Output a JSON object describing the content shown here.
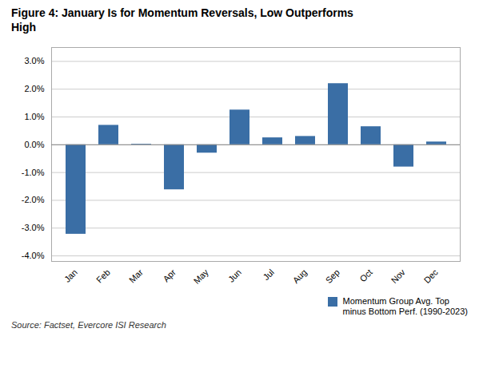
{
  "chart_data": {
    "type": "bar",
    "title": "Figure 4: January Is for Momentum Reversals, Low Outperforms\nHigh",
    "categories": [
      "Jan",
      "Feb",
      "Mar",
      "Apr",
      "May",
      "Jun",
      "Jul",
      "Aug",
      "Sep",
      "Oct",
      "Nov",
      "Dec"
    ],
    "series": [
      {
        "name": "Momentum Group Avg. Top\nminus Bottom Perf. (1990-2023)",
        "color": "#3A6EA5",
        "values": [
          -3.22,
          0.7,
          0.02,
          -1.62,
          -0.3,
          1.25,
          0.25,
          0.3,
          2.2,
          0.65,
          -0.8,
          0.1
        ]
      }
    ],
    "ylim": [
      -4.2,
      3.5
    ],
    "yticks": [
      {
        "value": -4.0,
        "label": "-4.0%"
      },
      {
        "value": -3.0,
        "label": "-3.0%"
      },
      {
        "value": -2.0,
        "label": "-2.0%"
      },
      {
        "value": -1.0,
        "label": "-1.0%"
      },
      {
        "value": 0.0,
        "label": "0.0%"
      },
      {
        "value": 1.0,
        "label": "1.0%"
      },
      {
        "value": 2.0,
        "label": "2.0%"
      },
      {
        "value": 3.0,
        "label": "3.0%"
      }
    ],
    "grid": true,
    "legend": "lower right",
    "source": "Source: Factset, Evercore ISI Research"
  }
}
